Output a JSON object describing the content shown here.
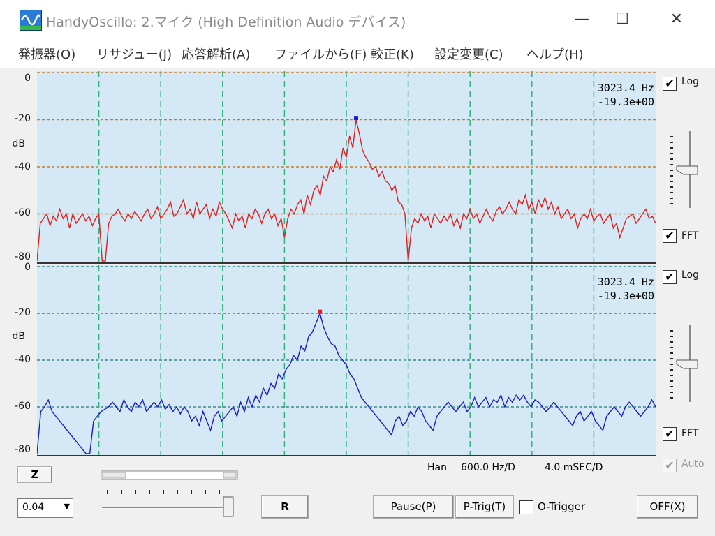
{
  "window": {
    "title": "HandyOscillo:  2.マイク (High Definition Audio デバイス)",
    "controls": {
      "minimize": "—",
      "maximize": "☐",
      "close": "✕"
    }
  },
  "menu": [
    "発振器(O)",
    "リサジュー(J)",
    "応答解析(A)",
    "ファイルから(F)",
    "較正(K)",
    "設定変更(C)",
    "ヘルプ(H)"
  ],
  "colors": {
    "plot_bg": "#d5e8f6",
    "grid_h_top": "#c87c2a",
    "grid_h_bottom": "#3a8a8a",
    "grid_v": "#33b27a",
    "trace_top": "#e02020",
    "trace_bottom": "#1a1ad0"
  },
  "top_panel": {
    "y_ticks": [
      "0",
      "-20",
      "-40",
      "-60",
      "-80"
    ],
    "unit": "dB",
    "readout_freq": "3023.4 Hz",
    "readout_level": "-19.3e+00",
    "log_label": "Log",
    "log_checked": true,
    "fft_label": "FFT",
    "fft_checked": true
  },
  "bottom_panel": {
    "y_ticks": [
      "0",
      "-20",
      "-40",
      "-60",
      "-80"
    ],
    "unit": "dB",
    "readout_freq": "3023.4 Hz",
    "readout_level": "-19.3e+00",
    "log_label": "Log",
    "log_checked": true,
    "fft_label": "FFT",
    "fft_checked": true
  },
  "controls": {
    "z_button": "Z",
    "r_button": "R",
    "pause_button": "Pause(P)",
    "ptrig_button": "P-Trig(T)",
    "otrigger_label": "O-Trigger",
    "otrigger_checked": false,
    "off_button": "OFF(X)",
    "auto_label": "Auto",
    "auto_checked": true,
    "combo_value": "0.04"
  },
  "status": {
    "window_fn": "Han",
    "freq_div": "600.0 Hz/D",
    "time_div": "4.0  mSEC/D"
  },
  "chart_data": [
    {
      "type": "line",
      "series": [
        {
          "values": [
            -80,
            -64,
            -62,
            -60,
            -65,
            -61,
            -63,
            -58,
            -62,
            -60,
            -66,
            -60,
            -64,
            -62,
            -60,
            -63,
            -61,
            -65,
            -62,
            -60,
            -80,
            -80,
            -64,
            -61,
            -60,
            -58,
            -61,
            -63,
            -60,
            -62,
            -59,
            -61,
            -63,
            -60,
            -58,
            -62,
            -60,
            -57,
            -62,
            -60,
            -58,
            -55,
            -61,
            -60,
            -57,
            -54,
            -60,
            -58,
            -62,
            -55,
            -60,
            -58,
            -56,
            -62,
            -58,
            -61,
            -55,
            -58,
            -60,
            -63,
            -66,
            -60,
            -63,
            -61,
            -66,
            -60,
            -62,
            -58,
            -60,
            -64,
            -60,
            -58,
            -62,
            -60,
            -65,
            -62,
            -70,
            -62,
            -58,
            -60,
            -56,
            -54,
            -60,
            -52,
            -56,
            -50,
            -48,
            -52,
            -44,
            -46,
            -40,
            -42,
            -37,
            -41,
            -32,
            -36,
            -27,
            -32,
            -20,
            -26,
            -33,
            -36,
            -38,
            -41,
            -40,
            -44,
            -42,
            -46,
            -47,
            -50,
            -48,
            -55,
            -56,
            -60,
            -80,
            -66,
            -62,
            -64,
            -60,
            -63,
            -61,
            -66,
            -60,
            -62,
            -64,
            -61,
            -63,
            -60,
            -65,
            -62,
            -66,
            -60,
            -62,
            -58,
            -62,
            -60,
            -64,
            -61,
            -58,
            -61,
            -63,
            -59,
            -57,
            -60,
            -58,
            -55,
            -58,
            -60,
            -54,
            -56,
            -52,
            -58,
            -55,
            -60,
            -54,
            -57,
            -53,
            -58,
            -55,
            -60,
            -57,
            -62,
            -60,
            -58,
            -62,
            -60,
            -66,
            -62,
            -60,
            -62,
            -58,
            -63,
            -61,
            -60,
            -64,
            -62,
            -60,
            -66,
            -64,
            -70,
            -66,
            -62,
            -61,
            -60,
            -64,
            -62,
            -60,
            -58,
            -62,
            -61,
            -64
          ]
        }
      ],
      "ylim": [
        -80,
        0
      ],
      "peak_marker": {
        "freq_hz": 3023.4,
        "level_db": -19.3
      }
    },
    {
      "type": "line",
      "series": [
        {
          "values": [
            -80,
            -62,
            -60,
            -57,
            -62,
            -64,
            -66,
            -68,
            -70,
            -72,
            -74,
            -76,
            -78,
            -80,
            -80,
            -66,
            -64,
            -62,
            -61,
            -60,
            -58,
            -60,
            -62,
            -57,
            -60,
            -62,
            -58,
            -60,
            -57,
            -62,
            -60,
            -58,
            -60,
            -57,
            -61,
            -59,
            -62,
            -60,
            -63,
            -60,
            -62,
            -66,
            -64,
            -68,
            -62,
            -66,
            -70,
            -64,
            -62,
            -66,
            -64,
            -62,
            -60,
            -64,
            -58,
            -62,
            -56,
            -60,
            -55,
            -58,
            -52,
            -55,
            -50,
            -52,
            -46,
            -48,
            -44,
            -42,
            -38,
            -40,
            -34,
            -36,
            -30,
            -28,
            -24,
            -20,
            -26,
            -30,
            -33,
            -34,
            -38,
            -40,
            -42,
            -46,
            -48,
            -52,
            -56,
            -58,
            -60,
            -62,
            -64,
            -66,
            -68,
            -70,
            -72,
            -66,
            -64,
            -68,
            -66,
            -62,
            -64,
            -60,
            -62,
            -66,
            -68,
            -70,
            -64,
            -62,
            -60,
            -58,
            -60,
            -62,
            -60,
            -58,
            -62,
            -60,
            -56,
            -60,
            -58,
            -56,
            -60,
            -57,
            -58,
            -55,
            -60,
            -56,
            -58,
            -55,
            -57,
            -55,
            -58,
            -60,
            -57,
            -58,
            -60,
            -62,
            -60,
            -58,
            -60,
            -62,
            -64,
            -66,
            -68,
            -64,
            -62,
            -66,
            -64,
            -62,
            -66,
            -68,
            -70,
            -64,
            -62,
            -60,
            -62,
            -64,
            -60,
            -58,
            -60,
            -62,
            -64,
            -62,
            -60,
            -57,
            -60
          ]
        }
      ],
      "ylim": [
        -80,
        0
      ],
      "peak_marker": {
        "freq_hz": 3023.4,
        "level_db": -19.3
      }
    }
  ]
}
